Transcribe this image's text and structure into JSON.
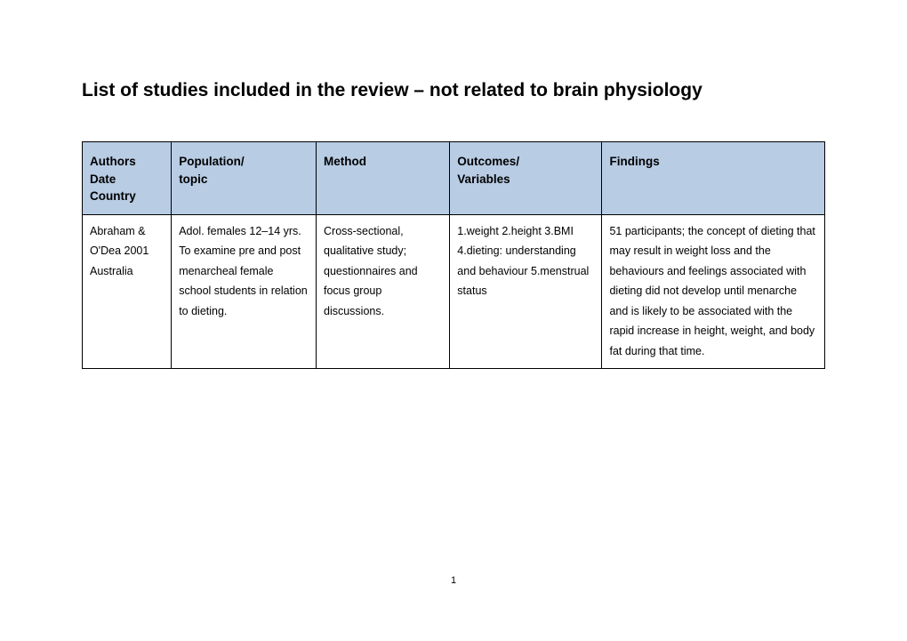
{
  "page": {
    "title": "List of studies included in the review – not related to brain physiology",
    "page_number": "1"
  },
  "table": {
    "header_bg": "#b8cce4",
    "border_color": "#000000",
    "text_color": "#000000",
    "columns": [
      {
        "lines": [
          "Authors",
          "Date",
          "Country"
        ],
        "width_pct": 12
      },
      {
        "lines": [
          "Population/",
          "topic"
        ],
        "width_pct": 19.5
      },
      {
        "lines": [
          "Method"
        ],
        "width_pct": 18
      },
      {
        "lines": [
          "Outcomes/",
          "Variables"
        ],
        "width_pct": 20.5
      },
      {
        "lines": [
          "Findings"
        ],
        "width_pct": 30
      }
    ],
    "rows": [
      {
        "authors": "Abraham & O'Dea 2001 Australia",
        "population": "Adol. females 12–14 yrs. To examine pre and post menarcheal female school students in relation to dieting.",
        "method": "Cross-sectional, qualitative study; questionnaires and focus group discussions.",
        "outcomes": "1.weight 2.height 3.BMI 4.dieting: understanding and behaviour 5.menstrual status",
        "findings": "51 participants; the concept of dieting that may result in weight loss and the behaviours and feelings associated with dieting did not develop until menarche and is likely to be associated with the rapid increase in height, weight, and body fat during that time."
      }
    ]
  }
}
